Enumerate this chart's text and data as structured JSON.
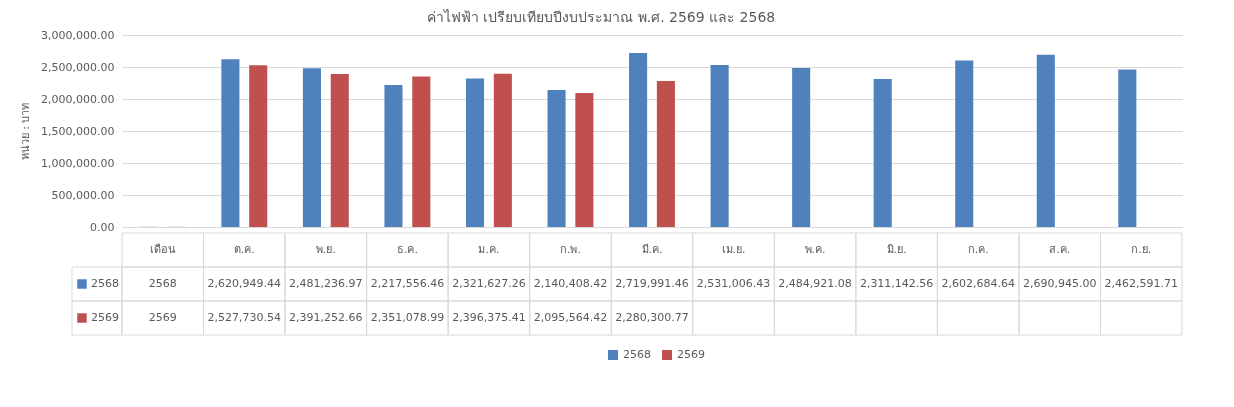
{
  "chart_data": {
    "type": "bar",
    "title": "ค่าไฟฟ้า เปรียบเทียบปีงบประมาณ พ.ศ. 2569 และ 2568",
    "ylabel": "หน่วย : บาท",
    "categories": [
      "เดือน",
      "ต.ค.",
      "พ.ย.",
      "ธ.ค.",
      "ม.ค.",
      "ก.พ.",
      "มี.ค.",
      "เม.ย.",
      "พ.ค.",
      "มิ.ย.",
      "ก.ค.",
      "ส.ค.",
      "ก.ย."
    ],
    "series": [
      {
        "name": "2568",
        "color": "#4f81bd",
        "values": [
          2568,
          2620949.44,
          2481236.97,
          2217556.46,
          2321627.26,
          2140408.42,
          2719991.46,
          2531006.43,
          2484921.08,
          2311142.56,
          2602684.64,
          2690945.0,
          2462591.71
        ],
        "value_labels": [
          "2568",
          "2,620,949.44",
          "2,481,236.97",
          "2,217,556.46",
          "2,321,627.26",
          "2,140,408.42",
          "2,719,991.46",
          "2,531,006.43",
          "2,484,921.08",
          "2,311,142.56",
          "2,602,684.64",
          "2,690,945.00",
          "2,462,591.71"
        ]
      },
      {
        "name": "2569",
        "color": "#c0504d",
        "values": [
          2569,
          2527730.54,
          2391252.66,
          2351078.99,
          2396375.41,
          2095564.42,
          2280300.77,
          null,
          null,
          null,
          null,
          null,
          null
        ],
        "value_labels": [
          "2569",
          "2,527,730.54",
          "2,391,252.66",
          "2,351,078.99",
          "2,396,375.41",
          "2,095,564.42",
          "2,280,300.77",
          null,
          null,
          null,
          null,
          null,
          null
        ]
      }
    ],
    "ylim": [
      0,
      3000000
    ],
    "yticks": [
      {
        "value": 0,
        "label": "0.00"
      },
      {
        "value": 500000,
        "label": "500,000.00"
      },
      {
        "value": 1000000,
        "label": "1,000,000.00"
      },
      {
        "value": 1500000,
        "label": "1,500,000.00"
      },
      {
        "value": 2000000,
        "label": "2,000,000.00"
      },
      {
        "value": 2500000,
        "label": "2,500,000.00"
      },
      {
        "value": 3000000,
        "label": "3,000,000.00"
      }
    ],
    "grid": "y",
    "legend": "bottom"
  }
}
